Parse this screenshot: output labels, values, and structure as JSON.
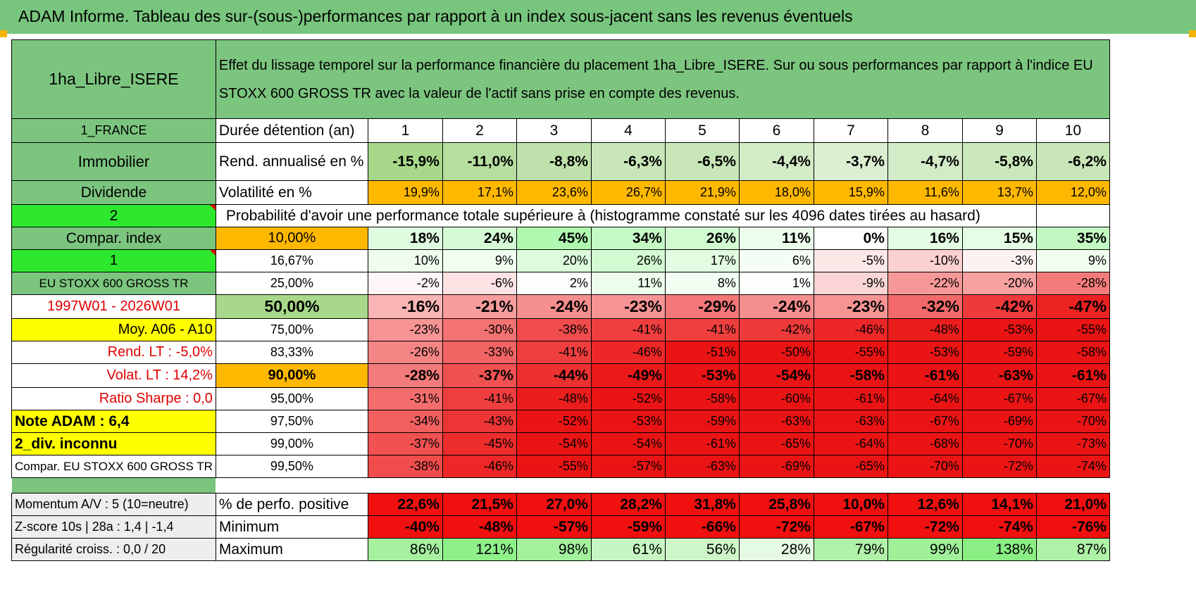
{
  "title": "ADAM Informe. Tableau des sur-(sous-)performances par rapport à un index sous-jacent sans les revenus éventuels",
  "header": {
    "asset": "1ha_Libre_ISERE",
    "description": "Effet du lissage temporel sur la performance financière du placement 1ha_Libre_ISERE. Sur ou sous performances par rapport à l'indice EU STOXX 600 GROSS TR avec la valeur de l'actif sans prise en compte des revenus."
  },
  "durations_label": "Durée détention (an)",
  "durations": [
    "1",
    "2",
    "3",
    "4",
    "5",
    "6",
    "7",
    "8",
    "9",
    "10"
  ],
  "rows": [
    {
      "left": "1_FRANCE",
      "label": "Durée détention (an)",
      "type": "durations"
    },
    {
      "left": "Immobilier",
      "label": "Rend. annualisé en %",
      "values": [
        "-15,9%",
        "-11,0%",
        "-8,8%",
        "-6,3%",
        "-6,5%",
        "-4,4%",
        "-3,7%",
        "-4,7%",
        "-5,8%",
        "-6,2%"
      ]
    },
    {
      "left": "Dividende",
      "label": "Volatilité en %",
      "values": [
        "19,9%",
        "17,1%",
        "23,6%",
        "26,7%",
        "21,9%",
        "18,0%",
        "15,9%",
        "11,6%",
        "13,7%",
        "12,0%"
      ]
    },
    {
      "left": "2",
      "label": "Probabilité d'avoir une performance totale supérieure à (histogramme constaté sur les 4096 dates tirées au hasard)",
      "type": "prob"
    },
    {
      "left": "Compar. index",
      "label": "10,00%",
      "values": [
        "18%",
        "24%",
        "45%",
        "34%",
        "26%",
        "11%",
        "0%",
        "16%",
        "15%",
        "35%"
      ]
    },
    {
      "left": "1",
      "label": "16,67%",
      "values": [
        "10%",
        "9%",
        "20%",
        "26%",
        "17%",
        "6%",
        "-5%",
        "-10%",
        "-3%",
        "9%"
      ]
    },
    {
      "left": "EU STOXX 600 GROSS TR",
      "label": "25,00%",
      "values": [
        "-2%",
        "-6%",
        "2%",
        "11%",
        "8%",
        "1%",
        "-9%",
        "-22%",
        "-20%",
        "-28%"
      ]
    },
    {
      "left": "1997W01 - 2026W01",
      "label": "50,00%",
      "values": [
        "-16%",
        "-21%",
        "-24%",
        "-23%",
        "-29%",
        "-24%",
        "-23%",
        "-32%",
        "-42%",
        "-47%"
      ]
    },
    {
      "left": "Moy. A06 - A10",
      "label": "75,00%",
      "values": [
        "-23%",
        "-30%",
        "-38%",
        "-41%",
        "-41%",
        "-42%",
        "-46%",
        "-48%",
        "-53%",
        "-55%"
      ]
    },
    {
      "left": "Rend. LT :    -5,0%",
      "label": "83,33%",
      "values": [
        "-26%",
        "-33%",
        "-41%",
        "-46%",
        "-51%",
        "-50%",
        "-55%",
        "-53%",
        "-59%",
        "-58%"
      ]
    },
    {
      "left": "Volat. LT :    14,2%",
      "label": "90,00%",
      "values": [
        "-28%",
        "-37%",
        "-44%",
        "-49%",
        "-53%",
        "-54%",
        "-58%",
        "-61%",
        "-63%",
        "-61%"
      ]
    },
    {
      "left": "Ratio Sharpe :     0,0",
      "label": "95,00%",
      "values": [
        "-31%",
        "-41%",
        "-48%",
        "-52%",
        "-58%",
        "-60%",
        "-61%",
        "-64%",
        "-67%",
        "-67%"
      ]
    },
    {
      "left": "Note ADAM : 6,4",
      "label": "97,50%",
      "values": [
        "-34%",
        "-43%",
        "-52%",
        "-53%",
        "-59%",
        "-63%",
        "-63%",
        "-67%",
        "-69%",
        "-70%"
      ]
    },
    {
      "left": "2_div. inconnu",
      "label": "99,00%",
      "values": [
        "-37%",
        "-45%",
        "-54%",
        "-54%",
        "-61%",
        "-65%",
        "-64%",
        "-68%",
        "-70%",
        "-73%"
      ]
    },
    {
      "left": "Compar. EU STOXX 600 GROSS TR",
      "label": "99,50%",
      "values": [
        "-38%",
        "-46%",
        "-55%",
        "-57%",
        "-63%",
        "-69%",
        "-65%",
        "-70%",
        "-72%",
        "-74%"
      ]
    }
  ],
  "bottom_rows": [
    {
      "left": "Momentum A/V : 5 (10=neutre)",
      "label": "% de perfo. positive",
      "values": [
        "22,6%",
        "21,5%",
        "27,0%",
        "28,2%",
        "31,8%",
        "25,8%",
        "10,0%",
        "12,6%",
        "14,1%",
        "21,0%"
      ]
    },
    {
      "left": "Z-score 10s | 28a : 1,4 | -1,4",
      "label": "Minimum",
      "values": [
        "-40%",
        "-48%",
        "-57%",
        "-59%",
        "-66%",
        "-72%",
        "-67%",
        "-72%",
        "-74%",
        "-76%"
      ]
    },
    {
      "left": "Régularité croiss. : 0,0 / 20",
      "label": "Maximum",
      "values": [
        "86%",
        "121%",
        "98%",
        "61%",
        "56%",
        "28%",
        "79%",
        "99%",
        "138%",
        "87%"
      ]
    }
  ],
  "colors": {
    "title_bg": "#78c67e",
    "label_bg": "#7cc57f",
    "bright_green": "#2ee82e",
    "orange": "#ffb800",
    "yellow": "#ffff00",
    "red_text": "#e00000"
  }
}
